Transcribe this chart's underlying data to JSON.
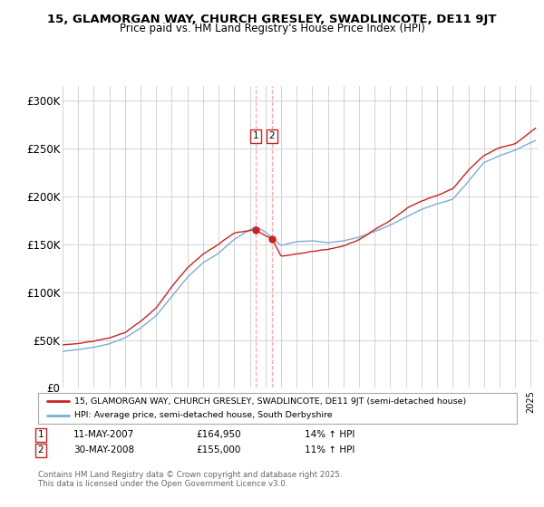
{
  "title_line1": "15, GLAMORGAN WAY, CHURCH GRESLEY, SWADLINCOTE, DE11 9JT",
  "title_line2": "Price paid vs. HM Land Registry's House Price Index (HPI)",
  "ylabel_ticks": [
    "£0",
    "£50K",
    "£100K",
    "£150K",
    "£200K",
    "£250K",
    "£300K"
  ],
  "ytick_values": [
    0,
    50000,
    100000,
    150000,
    200000,
    250000,
    300000
  ],
  "ylim": [
    0,
    315000
  ],
  "xlim_start": 1995.0,
  "xlim_end": 2025.5,
  "hpi_color": "#7aaed6",
  "price_color": "#cc2222",
  "transaction1_date": "11-MAY-2007",
  "transaction1_price": 164950,
  "transaction1_hpi": "14% ↑ HPI",
  "transaction1_x": 2007.36,
  "transaction2_date": "30-MAY-2008",
  "transaction2_price": 155000,
  "transaction2_hpi": "11% ↑ HPI",
  "transaction2_x": 2008.41,
  "legend_line1": "15, GLAMORGAN WAY, CHURCH GRESLEY, SWADLINCOTE, DE11 9JT (semi-detached house)",
  "legend_line2": "HPI: Average price, semi-detached house, South Derbyshire",
  "footer": "Contains HM Land Registry data © Crown copyright and database right 2025.\nThis data is licensed under the Open Government Licence v3.0.",
  "bg_color": "#ffffff",
  "grid_color": "#cccccc"
}
